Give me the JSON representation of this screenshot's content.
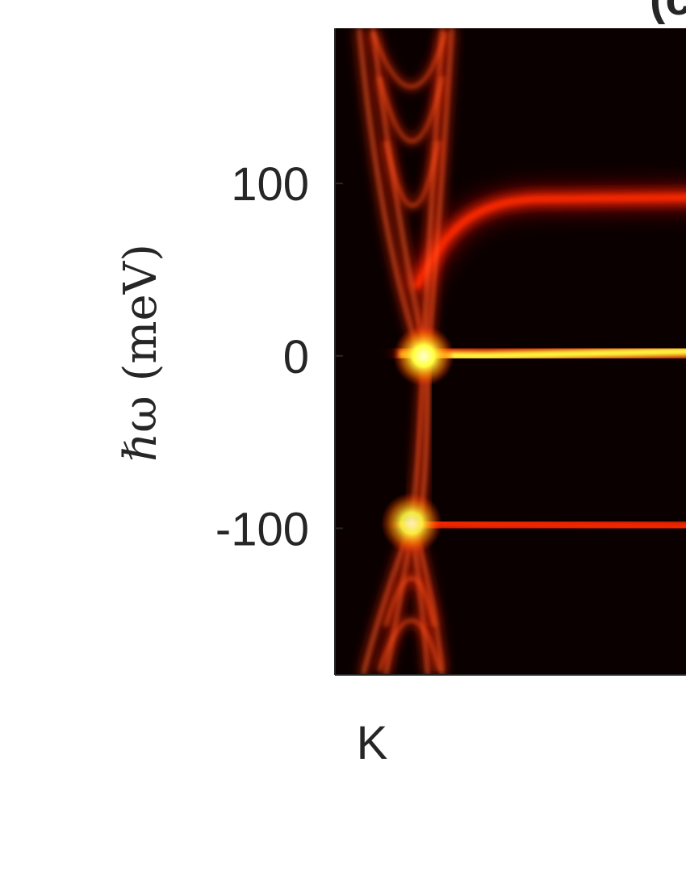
{
  "chart_data": {
    "type": "heatmap",
    "panel_label": "(c",
    "ylabel": "ℏω (meV)",
    "xlabel": "",
    "ylim": [
      -185,
      190
    ],
    "y_ticks": [
      {
        "value": 100,
        "label": "100"
      },
      {
        "value": 0,
        "label": "0"
      },
      {
        "value": -100,
        "label": "-100"
      }
    ],
    "x_ticks": [
      {
        "label": "K"
      }
    ],
    "colormap": "hot",
    "colors": {
      "background": "#0a0000",
      "low": "#b00000",
      "mid": "#ff2a00",
      "high": "#ffff40"
    },
    "features": [
      {
        "name": "flat band",
        "energy": 0,
        "intensity": 1.0
      },
      {
        "name": "upper band",
        "energy": 91,
        "intensity": 0.7
      },
      {
        "name": "lower band",
        "energy": -97,
        "intensity": 0.7
      },
      {
        "name": "bright spot",
        "energy": 0,
        "intensity": 1.0
      },
      {
        "name": "bright spot",
        "energy": -97,
        "intensity": 0.9
      }
    ]
  }
}
